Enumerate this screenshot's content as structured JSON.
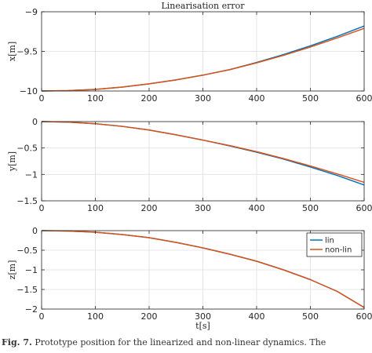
{
  "chart_data": [
    {
      "type": "line",
      "title": "Linearisation error",
      "xlabel": "",
      "ylabel": "x[m]",
      "xlim": [
        0,
        600
      ],
      "ylim": [
        -10,
        -9
      ],
      "xticks": [
        0,
        100,
        200,
        300,
        400,
        500,
        600
      ],
      "yticks": [
        -10,
        -9.5,
        -9
      ],
      "xtick_labels": [
        "0",
        "100",
        "200",
        "300",
        "400",
        "500",
        "600"
      ],
      "ytick_labels": [
        "−10",
        "−9.5",
        "−9"
      ],
      "grid": true,
      "x": [
        0,
        50,
        100,
        150,
        200,
        250,
        300,
        350,
        400,
        450,
        500,
        550,
        600
      ],
      "series": [
        {
          "name": "lin",
          "color": "#0072BD",
          "values": [
            -10.0,
            -9.995,
            -9.98,
            -9.95,
            -9.91,
            -9.86,
            -9.8,
            -9.73,
            -9.64,
            -9.54,
            -9.43,
            -9.31,
            -9.18
          ]
        },
        {
          "name": "non-lin",
          "color": "#D95319",
          "values": [
            -10.0,
            -9.995,
            -9.98,
            -9.95,
            -9.91,
            -9.86,
            -9.8,
            -9.73,
            -9.645,
            -9.55,
            -9.445,
            -9.33,
            -9.21
          ]
        }
      ]
    },
    {
      "type": "line",
      "title": "",
      "xlabel": "",
      "ylabel": "y[m]",
      "xlim": [
        0,
        600
      ],
      "ylim": [
        -1.5,
        0
      ],
      "xticks": [
        0,
        100,
        200,
        300,
        400,
        500,
        600
      ],
      "yticks": [
        -1.5,
        -1,
        -0.5,
        0
      ],
      "xtick_labels": [
        "0",
        "100",
        "200",
        "300",
        "400",
        "500",
        "600"
      ],
      "ytick_labels": [
        "−1.5",
        "−1",
        "−0.5",
        "0"
      ],
      "grid": true,
      "x": [
        0,
        50,
        100,
        150,
        200,
        250,
        300,
        350,
        400,
        450,
        500,
        550,
        600
      ],
      "series": [
        {
          "name": "lin",
          "color": "#0072BD",
          "values": [
            0.0,
            -0.01,
            -0.04,
            -0.09,
            -0.16,
            -0.25,
            -0.35,
            -0.46,
            -0.58,
            -0.71,
            -0.86,
            -1.02,
            -1.2
          ]
        },
        {
          "name": "non-lin",
          "color": "#D95319",
          "values": [
            0.0,
            -0.01,
            -0.04,
            -0.09,
            -0.16,
            -0.25,
            -0.35,
            -0.455,
            -0.57,
            -0.7,
            -0.84,
            -0.99,
            -1.15
          ]
        }
      ]
    },
    {
      "type": "line",
      "title": "",
      "xlabel": "t[s]",
      "ylabel": "z[m]",
      "xlim": [
        0,
        600
      ],
      "ylim": [
        -2,
        0
      ],
      "xticks": [
        0,
        100,
        200,
        300,
        400,
        500,
        600
      ],
      "yticks": [
        -2,
        -1.5,
        -1,
        -0.5,
        0
      ],
      "xtick_labels": [
        "0",
        "100",
        "200",
        "300",
        "400",
        "500",
        "600"
      ],
      "ytick_labels": [
        "−2",
        "−1.5",
        "−1",
        "−0.5",
        "0"
      ],
      "grid": true,
      "legend": {
        "placement": "top-right",
        "entries": [
          "lin",
          "non-lin"
        ]
      },
      "x": [
        0,
        50,
        100,
        150,
        200,
        250,
        300,
        350,
        400,
        450,
        500,
        550,
        600
      ],
      "series": [
        {
          "name": "lin",
          "color": "#0072BD",
          "values": [
            0.0,
            -0.01,
            -0.04,
            -0.1,
            -0.18,
            -0.3,
            -0.44,
            -0.6,
            -0.78,
            -1.0,
            -1.25,
            -1.55,
            -1.96
          ]
        },
        {
          "name": "non-lin",
          "color": "#D95319",
          "values": [
            0.0,
            -0.01,
            -0.04,
            -0.1,
            -0.18,
            -0.3,
            -0.44,
            -0.6,
            -0.78,
            -1.0,
            -1.25,
            -1.55,
            -1.96
          ]
        }
      ]
    }
  ],
  "caption": {
    "label": "Fig. 7.",
    "text": "Prototype position for the linearized and non-linear dynamics. The"
  }
}
